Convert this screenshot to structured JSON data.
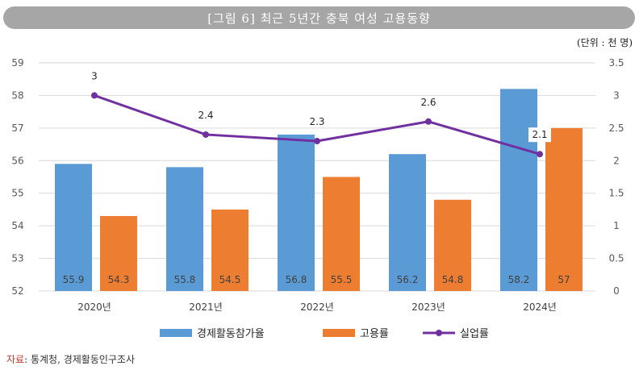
{
  "title": "[그림 6] 최근 5년간 충북 여성 고용동향",
  "unit": "(단위 : 천 명)",
  "source": {
    "label": "자료",
    "text": ": 통계청, 경제활동인구조사"
  },
  "colors": {
    "series1": "#5b9bd5",
    "series2": "#ed7d31",
    "series3": "#7030a0"
  },
  "chart_data": {
    "type": "bar",
    "categories": [
      "2020년",
      "2021년",
      "2022년",
      "2023년",
      "2024년"
    ],
    "series": [
      {
        "name": "경제활동참가율",
        "kind": "bar",
        "axis": "left",
        "values": [
          55.9,
          55.8,
          56.8,
          56.2,
          58.2
        ],
        "labels": [
          "55.9",
          "55.8",
          "56.8",
          "56.2",
          "58.2"
        ]
      },
      {
        "name": "고용률",
        "kind": "bar",
        "axis": "left",
        "values": [
          54.3,
          54.5,
          55.5,
          54.8,
          57.0
        ],
        "labels": [
          "54.3",
          "54.5",
          "55.5",
          "54.8",
          "57"
        ]
      },
      {
        "name": "실업률",
        "kind": "line",
        "axis": "right",
        "values": [
          3.0,
          2.4,
          2.3,
          2.6,
          2.1
        ],
        "labels": [
          "3",
          "2.4",
          "2.3",
          "2.6",
          "2.1"
        ]
      }
    ],
    "y_left": {
      "min": 52,
      "max": 59,
      "ticks": [
        "52",
        "53",
        "54",
        "55",
        "56",
        "57",
        "58",
        "59"
      ]
    },
    "y_right": {
      "min": 0,
      "max": 3.5,
      "ticks": [
        "0",
        "0.5",
        "1",
        "1.5",
        "2",
        "2.5",
        "3",
        "3.5"
      ]
    },
    "grid": true,
    "legend_position": "bottom"
  }
}
